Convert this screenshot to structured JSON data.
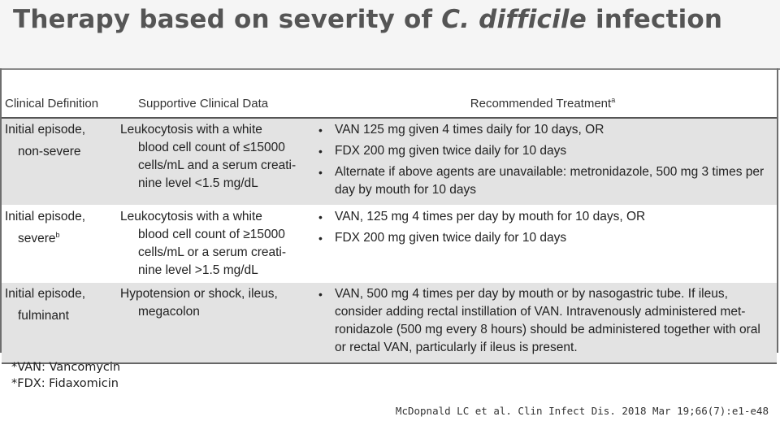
{
  "title": {
    "pre": "Therapy based on severity of ",
    "italic": "C. difficile",
    "post": " infection"
  },
  "table": {
    "headers": {
      "definition": "Clinical Definition",
      "supportive": "Supportive Clinical Data",
      "treatment": "Recommended Treatment",
      "treatment_sup": "a"
    },
    "rows": [
      {
        "def_l1": "Initial episode,",
        "def_l2": "non-severe",
        "def_sup": "",
        "sup_l1": "Leukocytosis with a white",
        "sup_rest": "blood cell count of ≤15000 cells/mL and a serum creati-nine level <1.5 mg/dL",
        "treatments": [
          "VAN 125 mg given 4 times daily for 10 days, OR",
          "FDX 200 mg given twice daily for 10 days",
          "Alternate if above agents are unavailable: metronidazole, 500 mg 3 times per day by mouth for 10 days"
        ]
      },
      {
        "def_l1": "Initial episode,",
        "def_l2": "severe",
        "def_sup": "b",
        "sup_l1": "Leukocytosis with a white",
        "sup_rest": "blood cell count of ≥15000 cells/mL or a serum creati-nine level >1.5 mg/dL",
        "treatments": [
          "VAN, 125 mg 4 times per day by mouth for 10 days, OR",
          "FDX 200 mg given twice daily for 10 days"
        ]
      },
      {
        "def_l1": "Initial episode,",
        "def_l2": "fulminant",
        "def_sup": "",
        "sup_l1": "Hypotension or shock, ileus,",
        "sup_rest": "megacolon",
        "treatments": [
          "VAN, 500 mg 4 times per day by mouth or by nasogastric tube. If ileus, consider adding rectal instillation of VAN. Intravenously administered met-ronidazole (500 mg every 8 hours) should be administered together with oral or rectal VAN, particularly if ileus is present."
        ]
      }
    ]
  },
  "footnotes": [
    "*VAN: Vancomycin",
    "*FDX: Fidaxomicin"
  ],
  "citation": "McDopnald LC et al. Clin Infect Dis. 2018 Mar 19;66(7):e1-e48"
}
